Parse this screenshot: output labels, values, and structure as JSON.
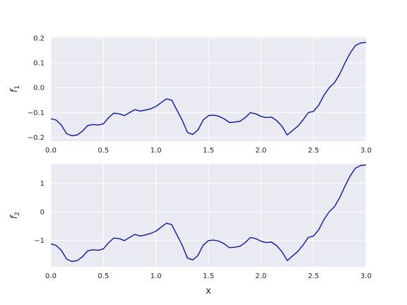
{
  "chart_data": [
    {
      "type": "line",
      "ylabel": "f",
      "ylabel_subscript": "1",
      "xlabel": "",
      "xlim": [
        0,
        3
      ],
      "ylim": [
        -0.215,
        0.205
      ],
      "xticks": [
        "0.0",
        "0.5",
        "1.0",
        "1.5",
        "2.0",
        "2.5",
        "3.0"
      ],
      "xtick_values": [
        0,
        0.5,
        1,
        1.5,
        2,
        2.5,
        3
      ],
      "yticks": [
        "−0.2",
        "−0.1",
        "0.0",
        "0.1",
        "0.2"
      ],
      "ytick_values": [
        -0.2,
        -0.1,
        0,
        0.1,
        0.2
      ],
      "grid": true,
      "color": "#0000cc",
      "x": [
        0.0,
        0.05,
        0.1,
        0.15,
        0.2,
        0.25,
        0.3,
        0.35,
        0.4,
        0.45,
        0.5,
        0.55,
        0.6,
        0.65,
        0.7,
        0.75,
        0.8,
        0.85,
        0.9,
        0.95,
        1.0,
        1.05,
        1.1,
        1.15,
        1.2,
        1.25,
        1.3,
        1.35,
        1.4,
        1.45,
        1.5,
        1.55,
        1.6,
        1.65,
        1.7,
        1.75,
        1.8,
        1.85,
        1.9,
        1.95,
        2.0,
        2.05,
        2.1,
        2.15,
        2.2,
        2.25,
        2.3,
        2.35,
        2.4,
        2.45,
        2.5,
        2.55,
        2.6,
        2.65,
        2.7,
        2.75,
        2.8,
        2.85,
        2.9,
        2.95,
        3.0
      ],
      "values": [
        -0.125,
        -0.13,
        -0.15,
        -0.185,
        -0.193,
        -0.19,
        -0.175,
        -0.152,
        -0.148,
        -0.15,
        -0.145,
        -0.12,
        -0.102,
        -0.105,
        -0.112,
        -0.1,
        -0.088,
        -0.094,
        -0.09,
        -0.085,
        -0.075,
        -0.06,
        -0.045,
        -0.05,
        -0.09,
        -0.13,
        -0.18,
        -0.188,
        -0.17,
        -0.13,
        -0.112,
        -0.11,
        -0.115,
        -0.125,
        -0.14,
        -0.138,
        -0.135,
        -0.12,
        -0.1,
        -0.105,
        -0.115,
        -0.12,
        -0.118,
        -0.132,
        -0.155,
        -0.19,
        -0.172,
        -0.155,
        -0.13,
        -0.1,
        -0.095,
        -0.07,
        -0.03,
        0.0,
        0.02,
        0.055,
        0.1,
        0.14,
        0.17,
        0.18,
        0.182
      ]
    },
    {
      "type": "line",
      "ylabel": "f",
      "ylabel_subscript": "2",
      "xlabel": "x",
      "xlim": [
        0,
        3
      ],
      "ylim": [
        -1.93,
        1.68
      ],
      "xticks": [
        "0.0",
        "0.5",
        "1.0",
        "1.5",
        "2.0",
        "2.5",
        "3.0"
      ],
      "xtick_values": [
        0,
        0.5,
        1,
        1.5,
        2,
        2.5,
        3
      ],
      "yticks": [
        "−1",
        "0",
        "1"
      ],
      "ytick_values": [
        -1,
        0,
        1
      ],
      "grid": true,
      "color": "#0000cc",
      "x": [
        0.0,
        0.05,
        0.1,
        0.15,
        0.2,
        0.25,
        0.3,
        0.35,
        0.4,
        0.45,
        0.5,
        0.55,
        0.6,
        0.65,
        0.7,
        0.75,
        0.8,
        0.85,
        0.9,
        0.95,
        1.0,
        1.05,
        1.1,
        1.15,
        1.2,
        1.25,
        1.3,
        1.35,
        1.4,
        1.45,
        1.5,
        1.55,
        1.6,
        1.65,
        1.7,
        1.75,
        1.8,
        1.85,
        1.9,
        1.95,
        2.0,
        2.05,
        2.1,
        2.15,
        2.2,
        2.25,
        2.3,
        2.35,
        2.4,
        2.45,
        2.5,
        2.55,
        2.6,
        2.65,
        2.7,
        2.75,
        2.8,
        2.85,
        2.9,
        2.95,
        3.0
      ],
      "values": [
        -1.12,
        -1.18,
        -1.35,
        -1.66,
        -1.74,
        -1.71,
        -1.58,
        -1.37,
        -1.33,
        -1.35,
        -1.3,
        -1.08,
        -0.92,
        -0.94,
        -1.01,
        -0.9,
        -0.79,
        -0.85,
        -0.81,
        -0.76,
        -0.68,
        -0.54,
        -0.4,
        -0.45,
        -0.81,
        -1.17,
        -1.62,
        -1.69,
        -1.53,
        -1.17,
        -1.01,
        -0.99,
        -1.03,
        -1.12,
        -1.26,
        -1.24,
        -1.21,
        -1.08,
        -0.9,
        -0.94,
        -1.03,
        -1.08,
        -1.06,
        -1.19,
        -1.4,
        -1.71,
        -1.55,
        -1.39,
        -1.17,
        -0.9,
        -0.85,
        -0.63,
        -0.27,
        0.0,
        0.18,
        0.5,
        0.9,
        1.26,
        1.53,
        1.62,
        1.64
      ]
    }
  ]
}
